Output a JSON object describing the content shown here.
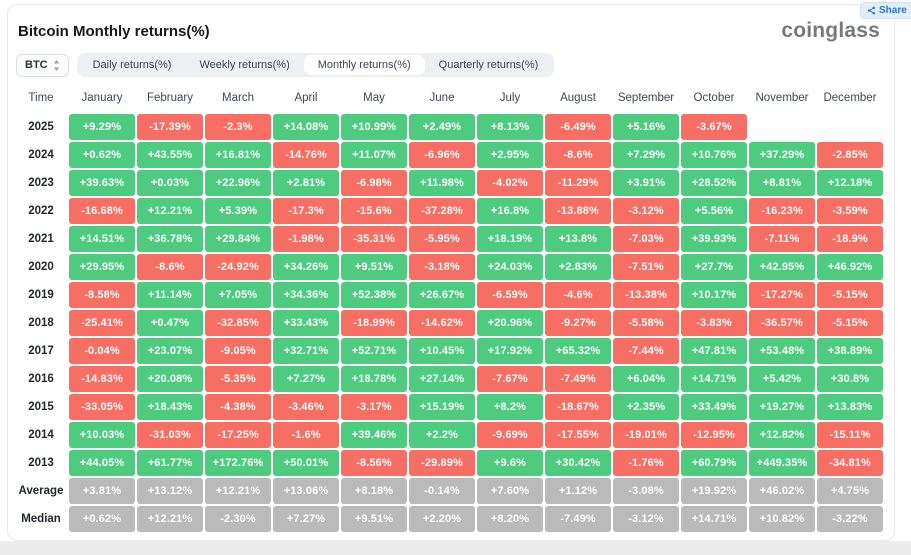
{
  "page": {
    "title": "Bitcoin Monthly returns(%)",
    "brand": "coinglass"
  },
  "share": {
    "label": "Share"
  },
  "controls": {
    "symbol": {
      "label": "BTC"
    },
    "tabs": [
      {
        "label": "Daily returns(%)",
        "active": false
      },
      {
        "label": "Weekly returns(%)",
        "active": false
      },
      {
        "label": "Monthly returns(%)",
        "active": true
      },
      {
        "label": "Quarterly returns(%)",
        "active": false
      }
    ]
  },
  "colors": {
    "positive": "#4ecb7f",
    "negative": "#f76e65",
    "summary": "#bababa"
  },
  "table": {
    "time_header": "Time",
    "months": [
      "January",
      "February",
      "March",
      "April",
      "May",
      "June",
      "July",
      "August",
      "September",
      "October",
      "November",
      "December"
    ],
    "rows": [
      {
        "label": "2025",
        "type": "year",
        "values": [
          "+9.29%",
          "-17.39%",
          "-2.3%",
          "+14.08%",
          "+10.99%",
          "+2.49%",
          "+8.13%",
          "-6.49%",
          "+5.16%",
          "-3.67%",
          "",
          ""
        ]
      },
      {
        "label": "2024",
        "type": "year",
        "values": [
          "+0.62%",
          "+43.55%",
          "+16.81%",
          "-14.76%",
          "+11.07%",
          "-6.96%",
          "+2.95%",
          "-8.6%",
          "+7.29%",
          "+10.76%",
          "+37.29%",
          "-2.85%"
        ]
      },
      {
        "label": "2023",
        "type": "year",
        "values": [
          "+39.63%",
          "+0.03%",
          "+22.96%",
          "+2.81%",
          "-6.98%",
          "+11.98%",
          "-4.02%",
          "-11.29%",
          "+3.91%",
          "+28.52%",
          "+8.81%",
          "+12.18%"
        ]
      },
      {
        "label": "2022",
        "type": "year",
        "values": [
          "-16.68%",
          "+12.21%",
          "+5.39%",
          "-17.3%",
          "-15.6%",
          "-37.28%",
          "+16.8%",
          "-13.88%",
          "-3.12%",
          "+5.56%",
          "-16.23%",
          "-3.59%"
        ]
      },
      {
        "label": "2021",
        "type": "year",
        "values": [
          "+14.51%",
          "+36.78%",
          "+29.84%",
          "-1.98%",
          "-35.31%",
          "-5.95%",
          "+18.19%",
          "+13.8%",
          "-7.03%",
          "+39.93%",
          "-7.11%",
          "-18.9%"
        ]
      },
      {
        "label": "2020",
        "type": "year",
        "values": [
          "+29.95%",
          "-8.6%",
          "-24.92%",
          "+34.26%",
          "+9.51%",
          "-3.18%",
          "+24.03%",
          "+2.83%",
          "-7.51%",
          "+27.7%",
          "+42.95%",
          "+46.92%"
        ]
      },
      {
        "label": "2019",
        "type": "year",
        "values": [
          "-8.58%",
          "+11.14%",
          "+7.05%",
          "+34.36%",
          "+52.38%",
          "+26.67%",
          "-6.59%",
          "-4.6%",
          "-13.38%",
          "+10.17%",
          "-17.27%",
          "-5.15%"
        ]
      },
      {
        "label": "2018",
        "type": "year",
        "values": [
          "-25.41%",
          "+0.47%",
          "-32.85%",
          "+33.43%",
          "-18.99%",
          "-14.62%",
          "+20.96%",
          "-9.27%",
          "-5.58%",
          "-3.83%",
          "-36.57%",
          "-5.15%"
        ]
      },
      {
        "label": "2017",
        "type": "year",
        "values": [
          "-0.04%",
          "+23.07%",
          "-9.05%",
          "+32.71%",
          "+52.71%",
          "+10.45%",
          "+17.92%",
          "+65.32%",
          "-7.44%",
          "+47.81%",
          "+53.48%",
          "+38.89%"
        ]
      },
      {
        "label": "2016",
        "type": "year",
        "values": [
          "-14.83%",
          "+20.08%",
          "-5.35%",
          "+7.27%",
          "+18.78%",
          "+27.14%",
          "-7.67%",
          "-7.49%",
          "+6.04%",
          "+14.71%",
          "+5.42%",
          "+30.8%"
        ]
      },
      {
        "label": "2015",
        "type": "year",
        "values": [
          "-33.05%",
          "+18.43%",
          "-4.38%",
          "-3.46%",
          "-3.17%",
          "+15.19%",
          "+8.2%",
          "-18.67%",
          "+2.35%",
          "+33.49%",
          "+19.27%",
          "+13.83%"
        ]
      },
      {
        "label": "2014",
        "type": "year",
        "values": [
          "+10.03%",
          "-31.03%",
          "-17.25%",
          "-1.6%",
          "+39.46%",
          "+2.2%",
          "-9.69%",
          "-17.55%",
          "-19.01%",
          "-12.95%",
          "+12.82%",
          "-15.11%"
        ]
      },
      {
        "label": "2013",
        "type": "year",
        "values": [
          "+44.05%",
          "+61.77%",
          "+172.76%",
          "+50.01%",
          "-8.56%",
          "-29.89%",
          "+9.6%",
          "+30.42%",
          "-1.76%",
          "+60.79%",
          "+449.35%",
          "-34.81%"
        ]
      },
      {
        "label": "Average",
        "type": "summary",
        "values": [
          "+3.81%",
          "+13.12%",
          "+12.21%",
          "+13.06%",
          "+8.18%",
          "-0.14%",
          "+7.60%",
          "+1.12%",
          "-3.08%",
          "+19.92%",
          "+46.02%",
          "+4.75%"
        ]
      },
      {
        "label": "Median",
        "type": "summary",
        "values": [
          "+0.62%",
          "+12.21%",
          "-2.30%",
          "+7.27%",
          "+9.51%",
          "+2.20%",
          "+8.20%",
          "-7.49%",
          "-3.12%",
          "+14.71%",
          "+10.82%",
          "-3.22%"
        ]
      }
    ]
  }
}
